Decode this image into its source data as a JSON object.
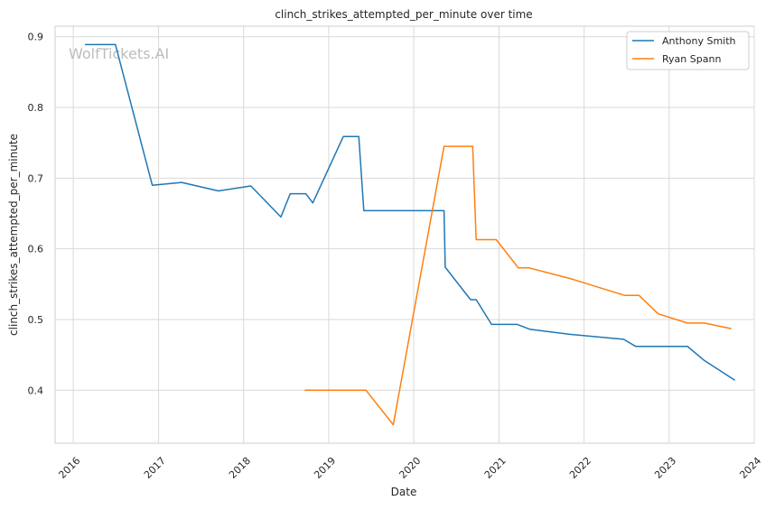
{
  "watermark": "WolfTickets.AI",
  "chart_data": {
    "type": "line",
    "title": "clinch_strikes_attempted_per_minute over time",
    "xlabel": "Date",
    "ylabel": "clinch_strikes_attempted_per_minute",
    "x_ticks": [
      "2016",
      "2017",
      "2018",
      "2019",
      "2020",
      "2021",
      "2022",
      "2023",
      "2024"
    ],
    "y_ticks": [
      "0.4",
      "0.5",
      "0.6",
      "0.7",
      "0.8",
      "0.9"
    ],
    "xlim": [
      "2015-10-15",
      "2024-01-01"
    ],
    "ylim": [
      0.325,
      0.915
    ],
    "grid": true,
    "legend_position": "top-right",
    "series": [
      {
        "name": "Anthony Smith",
        "color": "#1f77b4",
        "points": [
          [
            "2016-02-20",
            0.889
          ],
          [
            "2016-06-30",
            0.889
          ],
          [
            "2016-12-05",
            0.69
          ],
          [
            "2017-04-10",
            0.694
          ],
          [
            "2017-09-15",
            0.682
          ],
          [
            "2018-02-01",
            0.689
          ],
          [
            "2018-06-10",
            0.645
          ],
          [
            "2018-07-20",
            0.678
          ],
          [
            "2018-09-25",
            0.678
          ],
          [
            "2018-10-25",
            0.665
          ],
          [
            "2019-03-05",
            0.759
          ],
          [
            "2019-05-10",
            0.759
          ],
          [
            "2019-06-01",
            0.654
          ],
          [
            "2020-05-10",
            0.654
          ],
          [
            "2020-05-15",
            0.574
          ],
          [
            "2020-09-01",
            0.528
          ],
          [
            "2020-09-25",
            0.528
          ],
          [
            "2020-11-30",
            0.493
          ],
          [
            "2021-03-20",
            0.493
          ],
          [
            "2021-05-15",
            0.486
          ],
          [
            "2021-11-01",
            0.479
          ],
          [
            "2022-06-20",
            0.472
          ],
          [
            "2022-08-10",
            0.462
          ],
          [
            "2023-03-20",
            0.462
          ],
          [
            "2023-06-01",
            0.442
          ],
          [
            "2023-10-10",
            0.414
          ]
        ]
      },
      {
        "name": "Ryan Spann",
        "color": "#ff7f0e",
        "points": [
          [
            "2018-09-20",
            0.4
          ],
          [
            "2019-06-10",
            0.4
          ],
          [
            "2019-10-05",
            0.351
          ],
          [
            "2020-05-10",
            0.745
          ],
          [
            "2020-09-10",
            0.745
          ],
          [
            "2020-09-25",
            0.613
          ],
          [
            "2020-12-20",
            0.613
          ],
          [
            "2021-03-25",
            0.573
          ],
          [
            "2021-05-10",
            0.573
          ],
          [
            "2021-11-01",
            0.558
          ],
          [
            "2022-06-25",
            0.534
          ],
          [
            "2022-08-25",
            0.534
          ],
          [
            "2022-11-15",
            0.508
          ],
          [
            "2023-03-20",
            0.495
          ],
          [
            "2023-06-01",
            0.495
          ],
          [
            "2023-09-25",
            0.487
          ]
        ]
      }
    ]
  }
}
